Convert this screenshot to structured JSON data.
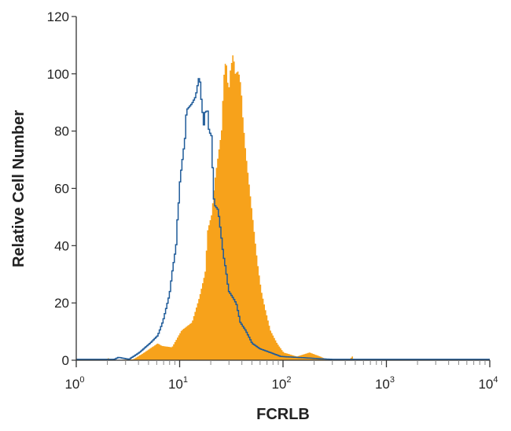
{
  "chart_data": {
    "type": "histogram",
    "title": "",
    "xlabel": "FCRLB",
    "ylabel": "Relative Cell Number",
    "x_scale": "log",
    "xlim": [
      1,
      10000
    ],
    "ylim": [
      0,
      120
    ],
    "x_ticks": [
      {
        "base": "10",
        "exp": "0"
      },
      {
        "base": "10",
        "exp": "1"
      },
      {
        "base": "10",
        "exp": "2"
      },
      {
        "base": "10",
        "exp": "3"
      },
      {
        "base": "10",
        "exp": "4"
      }
    ],
    "y_ticks": [
      "0",
      "20",
      "40",
      "60",
      "80",
      "100",
      "120"
    ],
    "grid": false,
    "legend": "none",
    "colors": {
      "filled": "#F7A21B",
      "outline": "#1F5B99",
      "axis": "#333333"
    },
    "series": [
      {
        "style": "outline",
        "color": "#1F5B99",
        "x": [
          1,
          2.3,
          2.53,
          3.2,
          4.04,
          5.1,
          6.07,
          6.83,
          7.89,
          8.36,
          9.13,
          9.4,
          9.69,
          9.96,
          10.3,
          11.2,
          11.5,
          13.0,
          14.1,
          15.0,
          15.4,
          15.9,
          16.4,
          16.9,
          17.4,
          18.4,
          19.0,
          20.1,
          20.7,
          21.3,
          23.3,
          24.6,
          26.1,
          27.7,
          29.4,
          33.0,
          35.0,
          38.2,
          43.0,
          49.7,
          59.2,
          74.3,
          94.4,
          169,
          226,
          300,
          10000
        ],
        "y": [
          0.3,
          0.3,
          1,
          0.3,
          2.7,
          5.9,
          8.6,
          13.7,
          23,
          30.6,
          39.8,
          48.9,
          55.3,
          62.6,
          67.3,
          78.3,
          87.3,
          89.6,
          92,
          97.5,
          99.7,
          92.3,
          87.3,
          81.8,
          86.5,
          87.3,
          80,
          78.3,
          65.3,
          54.4,
          52.5,
          45.3,
          37,
          31.6,
          24.2,
          21.4,
          19.6,
          13.2,
          10.4,
          5.9,
          4,
          2.7,
          1.3,
          0.8,
          0.5,
          0.3,
          0.3
        ]
      },
      {
        "style": "filled",
        "color": "#F7A21B",
        "x": [
          1,
          1.9,
          2.0,
          2.1,
          3.5,
          4.28,
          6.07,
          6.62,
          8.32,
          10.3,
          13.0,
          15.4,
          17.4,
          18.4,
          20.1,
          21.9,
          23.9,
          25.4,
          26.1,
          27.7,
          29.4,
          30.2,
          32.6,
          34.0,
          36.6,
          38.8,
          40.4,
          43.0,
          46.9,
          51.2,
          55.8,
          60.9,
          66.5,
          74.6,
          86.5,
          100,
          134,
          178,
          226,
          260,
          440,
          459,
          480,
          10000
        ],
        "y": [
          0,
          0,
          0.8,
          0,
          0.3,
          2.2,
          5.9,
          5,
          4.5,
          10.4,
          13.2,
          22.3,
          30.6,
          45.3,
          50.8,
          64.5,
          74.5,
          81.8,
          97.5,
          105.6,
          92.8,
          100.2,
          107.4,
          100,
          101,
          95.6,
          84.6,
          72.7,
          59.9,
          47,
          34.3,
          24.2,
          17.8,
          10.4,
          5.9,
          2.7,
          1.3,
          2.7,
          1.3,
          0.3,
          0.2,
          1.5,
          0.2,
          0
        ]
      }
    ]
  }
}
